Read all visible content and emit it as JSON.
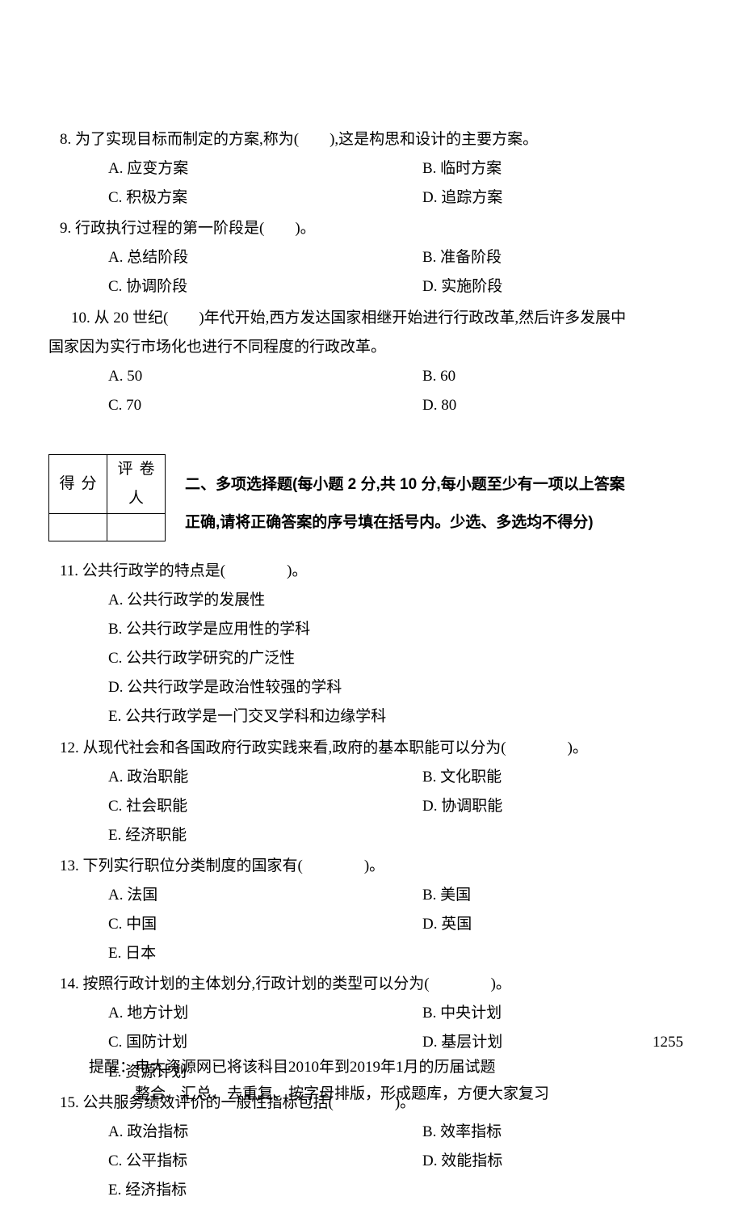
{
  "q8": {
    "stem": "8. 为了实现目标而制定的方案,称为(　　),这是构思和设计的主要方案。",
    "A": "A. 应变方案",
    "B": "B. 临时方案",
    "C": "C. 积极方案",
    "D": "D. 追踪方案"
  },
  "q9": {
    "stem": "9. 行政执行过程的第一阶段是(　　)。",
    "A": "A. 总结阶段",
    "B": "B. 准备阶段",
    "C": "C. 协调阶段",
    "D": "D. 实施阶段"
  },
  "q10": {
    "stem1": "10. 从 20 世纪(　　)年代开始,西方发达国家相继开始进行行政改革,然后许多发展中",
    "stem2": "国家因为实行市场化也进行不同程度的行政改革。",
    "A": "A. 50",
    "B": "B. 60",
    "C": "C. 70",
    "D": "D. 80"
  },
  "scorebox": {
    "col1": "得分",
    "col2": "评卷人"
  },
  "section2": {
    "line1": "二、多项选择题(每小题 2 分,共 10 分,每小题至少有一项以上答案",
    "line2": "正确,请将正确答案的序号填在括号内。少选、多选均不得分)"
  },
  "q11": {
    "stem": "11. 公共行政学的特点是(　　　　)。",
    "A": "A. 公共行政学的发展性",
    "B": "B. 公共行政学是应用性的学科",
    "C": "C. 公共行政学研究的广泛性",
    "D": "D. 公共行政学是政治性较强的学科",
    "E": "E. 公共行政学是一门交叉学科和边缘学科"
  },
  "q12": {
    "stem": "12. 从现代社会和各国政府行政实践来看,政府的基本职能可以分为(　　　　)。",
    "A": "A. 政治职能",
    "B": "B. 文化职能",
    "C": "C. 社会职能",
    "D": "D. 协调职能",
    "E": "E. 经济职能"
  },
  "q13": {
    "stem": "13. 下列实行职位分类制度的国家有(　　　　)。",
    "A": "A. 法国",
    "B": "B. 美国",
    "C": "C. 中国",
    "D": "D. 英国",
    "E": "E. 日本"
  },
  "q14": {
    "stem": "14. 按照行政计划的主体划分,行政计划的类型可以分为(　　　　)。",
    "A": "A. 地方计划",
    "B": "B. 中央计划",
    "C": "C. 国防计划",
    "D": "D. 基层计划",
    "E": "E. 资源计划"
  },
  "q15": {
    "stem": "15. 公共服务绩效评价的一般性指标包括(　　　　)。",
    "A": "A. 政治指标",
    "B": "B. 效率指标",
    "C": "C. 公平指标",
    "D": "D. 效能指标",
    "E": "E. 经济指标"
  },
  "pagenum": "1255",
  "footer": {
    "l1": "提醒：电大资源网已将该科目2010年到2019年1月的历届试题",
    "l2": "　　　整合、汇总、去重复、按字母排版，形成题库，方便大家复习"
  }
}
